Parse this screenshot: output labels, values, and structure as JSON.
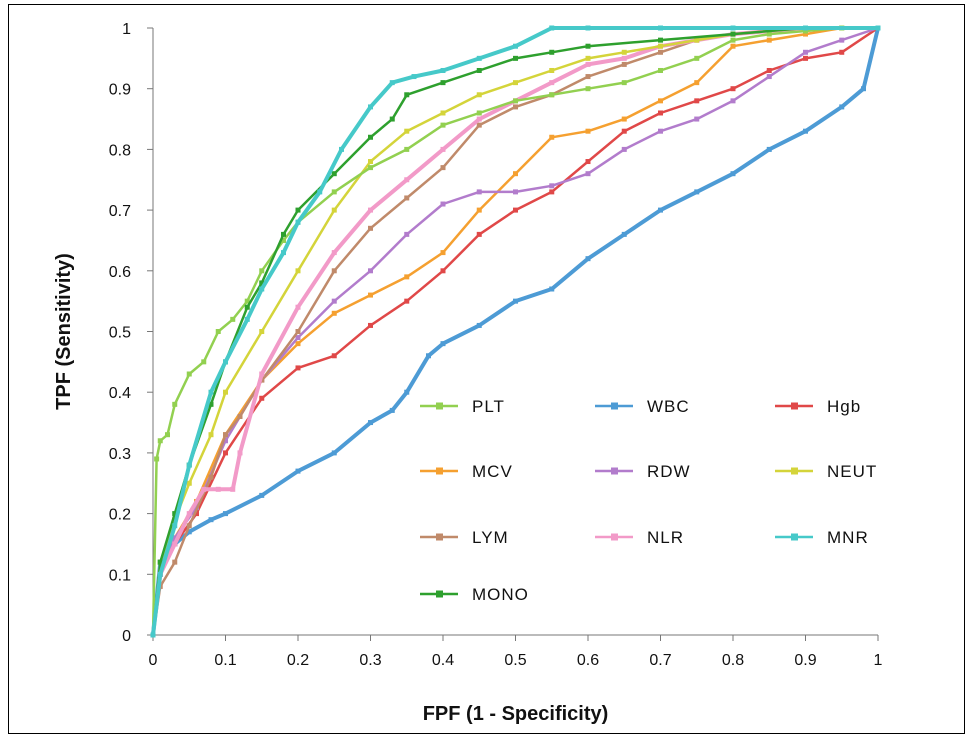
{
  "chart_data": {
    "type": "line",
    "xlabel": "FPF (1 - Specificity)",
    "ylabel": "TPF (Sensitivity)",
    "xlim": [
      0,
      1
    ],
    "ylim": [
      0,
      1
    ],
    "x_ticks": [
      "0",
      "0.1",
      "0.2",
      "0.3",
      "0.4",
      "0.5",
      "0.6",
      "0.7",
      "0.8",
      "0.9",
      "1"
    ],
    "y_ticks": [
      "0",
      "0.1",
      "0.2",
      "0.3",
      "0.4",
      "0.5",
      "0.6",
      "0.7",
      "0.8",
      "0.9",
      "1"
    ],
    "grid": false,
    "legend_position": "inside-lower-right",
    "series": [
      {
        "name": "PLT",
        "color": "#92d050",
        "marker": "square",
        "x": [
          0,
          0.005,
          0.01,
          0.02,
          0.03,
          0.05,
          0.07,
          0.09,
          0.11,
          0.13,
          0.15,
          0.18,
          0.2,
          0.25,
          0.3,
          0.35,
          0.4,
          0.45,
          0.5,
          0.55,
          0.6,
          0.65,
          0.7,
          0.75,
          0.8,
          0.85,
          0.9,
          0.95,
          1
        ],
        "y": [
          0,
          0.29,
          0.32,
          0.33,
          0.38,
          0.43,
          0.45,
          0.5,
          0.52,
          0.55,
          0.6,
          0.65,
          0.68,
          0.73,
          0.77,
          0.8,
          0.84,
          0.86,
          0.88,
          0.89,
          0.9,
          0.91,
          0.93,
          0.95,
          0.98,
          0.99,
          0.995,
          1,
          1
        ]
      },
      {
        "name": "WBC",
        "color": "#4d9bd5",
        "marker": "square",
        "x": [
          0,
          0.01,
          0.03,
          0.05,
          0.08,
          0.1,
          0.15,
          0.2,
          0.25,
          0.3,
          0.33,
          0.35,
          0.38,
          0.4,
          0.45,
          0.5,
          0.55,
          0.6,
          0.65,
          0.7,
          0.75,
          0.8,
          0.85,
          0.9,
          0.95,
          0.98,
          1
        ],
        "y": [
          0,
          0.12,
          0.15,
          0.17,
          0.19,
          0.2,
          0.23,
          0.27,
          0.3,
          0.35,
          0.37,
          0.4,
          0.46,
          0.48,
          0.51,
          0.55,
          0.57,
          0.62,
          0.66,
          0.7,
          0.73,
          0.76,
          0.8,
          0.83,
          0.87,
          0.9,
          1
        ]
      },
      {
        "name": "Hgb",
        "color": "#e04848",
        "marker": "square",
        "x": [
          0,
          0.01,
          0.03,
          0.06,
          0.1,
          0.15,
          0.2,
          0.25,
          0.3,
          0.35,
          0.4,
          0.45,
          0.5,
          0.55,
          0.6,
          0.65,
          0.7,
          0.75,
          0.8,
          0.85,
          0.9,
          0.95,
          1
        ],
        "y": [
          0,
          0.1,
          0.15,
          0.2,
          0.3,
          0.39,
          0.44,
          0.46,
          0.51,
          0.55,
          0.6,
          0.66,
          0.7,
          0.73,
          0.78,
          0.83,
          0.86,
          0.88,
          0.9,
          0.93,
          0.95,
          0.96,
          1
        ]
      },
      {
        "name": "MCV",
        "color": "#f5a030",
        "marker": "square",
        "x": [
          0,
          0.01,
          0.03,
          0.06,
          0.1,
          0.15,
          0.2,
          0.25,
          0.3,
          0.35,
          0.4,
          0.45,
          0.5,
          0.55,
          0.6,
          0.65,
          0.7,
          0.75,
          0.8,
          0.85,
          0.9,
          0.95,
          1
        ],
        "y": [
          0,
          0.1,
          0.16,
          0.22,
          0.33,
          0.42,
          0.48,
          0.53,
          0.56,
          0.59,
          0.63,
          0.7,
          0.76,
          0.82,
          0.83,
          0.85,
          0.88,
          0.91,
          0.97,
          0.98,
          0.99,
          1,
          1
        ]
      },
      {
        "name": "RDW",
        "color": "#b27ccc",
        "marker": "square",
        "x": [
          0,
          0.01,
          0.03,
          0.06,
          0.1,
          0.15,
          0.2,
          0.25,
          0.3,
          0.35,
          0.4,
          0.45,
          0.5,
          0.55,
          0.6,
          0.65,
          0.7,
          0.75,
          0.8,
          0.85,
          0.9,
          0.95,
          1
        ],
        "y": [
          0,
          0.1,
          0.16,
          0.21,
          0.32,
          0.42,
          0.49,
          0.55,
          0.6,
          0.66,
          0.71,
          0.73,
          0.73,
          0.74,
          0.76,
          0.8,
          0.83,
          0.85,
          0.88,
          0.92,
          0.96,
          0.98,
          1
        ]
      },
      {
        "name": "NEUT",
        "color": "#d4d43a",
        "marker": "square",
        "x": [
          0,
          0.01,
          0.03,
          0.05,
          0.08,
          0.1,
          0.15,
          0.2,
          0.25,
          0.3,
          0.35,
          0.4,
          0.45,
          0.5,
          0.55,
          0.6,
          0.65,
          0.7,
          0.75,
          0.8,
          0.9,
          1
        ],
        "y": [
          0,
          0.12,
          0.19,
          0.25,
          0.33,
          0.4,
          0.5,
          0.6,
          0.7,
          0.78,
          0.83,
          0.86,
          0.89,
          0.91,
          0.93,
          0.95,
          0.96,
          0.97,
          0.98,
          0.99,
          1,
          1
        ]
      },
      {
        "name": "LYM",
        "color": "#c08a6a",
        "marker": "square",
        "x": [
          0,
          0.01,
          0.03,
          0.05,
          0.08,
          0.1,
          0.12,
          0.15,
          0.2,
          0.25,
          0.3,
          0.35,
          0.4,
          0.45,
          0.5,
          0.55,
          0.6,
          0.65,
          0.7,
          0.75,
          0.8,
          0.9,
          1
        ],
        "y": [
          0,
          0.08,
          0.12,
          0.18,
          0.26,
          0.33,
          0.36,
          0.42,
          0.5,
          0.6,
          0.67,
          0.72,
          0.77,
          0.84,
          0.87,
          0.89,
          0.92,
          0.94,
          0.96,
          0.98,
          0.99,
          1,
          1
        ]
      },
      {
        "name": "NLR",
        "color": "#f29ac8",
        "marker": "square",
        "x": [
          0,
          0.01,
          0.03,
          0.05,
          0.07,
          0.09,
          0.11,
          0.12,
          0.15,
          0.2,
          0.25,
          0.3,
          0.35,
          0.4,
          0.45,
          0.5,
          0.55,
          0.6,
          0.65,
          0.7,
          0.75,
          0.8,
          0.9,
          1
        ],
        "y": [
          0,
          0.1,
          0.15,
          0.2,
          0.24,
          0.24,
          0.24,
          0.3,
          0.43,
          0.54,
          0.63,
          0.7,
          0.75,
          0.8,
          0.85,
          0.88,
          0.91,
          0.94,
          0.95,
          0.97,
          0.98,
          0.99,
          1,
          1
        ]
      },
      {
        "name": "MNR",
        "color": "#46c9c9",
        "marker": "square",
        "x": [
          0,
          0.01,
          0.03,
          0.05,
          0.08,
          0.1,
          0.13,
          0.15,
          0.18,
          0.2,
          0.23,
          0.26,
          0.3,
          0.33,
          0.36,
          0.4,
          0.45,
          0.5,
          0.55,
          0.6,
          0.7,
          0.8,
          0.9,
          1
        ],
        "y": [
          0,
          0.1,
          0.18,
          0.28,
          0.4,
          0.45,
          0.52,
          0.57,
          0.63,
          0.68,
          0.73,
          0.8,
          0.87,
          0.91,
          0.92,
          0.93,
          0.95,
          0.97,
          1,
          1,
          1,
          1,
          1,
          1
        ]
      },
      {
        "name": "MONO",
        "color": "#2ea02e",
        "marker": "square",
        "x": [
          0,
          0.01,
          0.03,
          0.05,
          0.08,
          0.1,
          0.13,
          0.15,
          0.18,
          0.2,
          0.25,
          0.3,
          0.33,
          0.35,
          0.4,
          0.45,
          0.5,
          0.55,
          0.6,
          0.7,
          0.8,
          0.9,
          1
        ],
        "y": [
          0,
          0.12,
          0.2,
          0.28,
          0.38,
          0.45,
          0.54,
          0.58,
          0.66,
          0.7,
          0.76,
          0.82,
          0.85,
          0.89,
          0.91,
          0.93,
          0.95,
          0.96,
          0.97,
          0.98,
          0.99,
          1,
          1
        ]
      }
    ]
  }
}
